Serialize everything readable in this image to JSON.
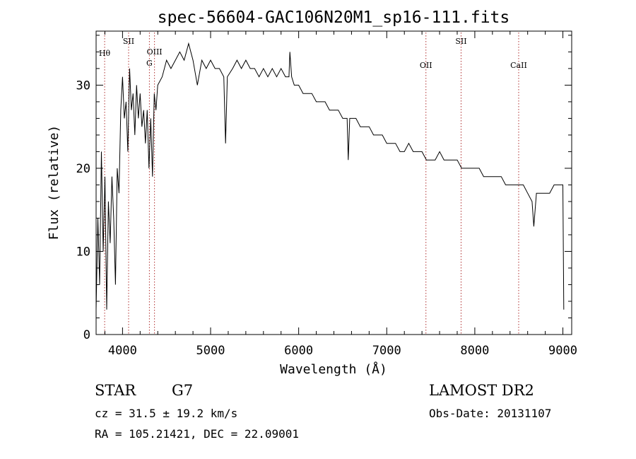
{
  "chart_data": {
    "type": "line",
    "title": "spec-56604-GAC106N20M1_sp16-111.fits",
    "xlabel": "Wavelength (Å)",
    "ylabel": "Flux (relative)",
    "xlim": [
      3700,
      9100
    ],
    "ylim": [
      0,
      36.5
    ],
    "xticks": [
      4000,
      5000,
      6000,
      7000,
      8000,
      9000
    ],
    "yticks": [
      0,
      10,
      20,
      30
    ],
    "x_minor_step": 200,
    "y_minor_step": 2,
    "series": [
      {
        "color": "#000000",
        "points": [
          [
            3700,
            3
          ],
          [
            3720,
            14
          ],
          [
            3740,
            6
          ],
          [
            3760,
            22
          ],
          [
            3780,
            10
          ],
          [
            3800,
            19
          ],
          [
            3820,
            3
          ],
          [
            3840,
            16
          ],
          [
            3860,
            11
          ],
          [
            3880,
            19
          ],
          [
            3900,
            14
          ],
          [
            3920,
            6
          ],
          [
            3940,
            20
          ],
          [
            3960,
            17
          ],
          [
            3980,
            27
          ],
          [
            4000,
            31
          ],
          [
            4020,
            26
          ],
          [
            4040,
            28
          ],
          [
            4060,
            22
          ],
          [
            4080,
            32
          ],
          [
            4100,
            27
          ],
          [
            4120,
            29
          ],
          [
            4140,
            24
          ],
          [
            4160,
            30
          ],
          [
            4180,
            26
          ],
          [
            4200,
            29
          ],
          [
            4220,
            25
          ],
          [
            4240,
            27
          ],
          [
            4260,
            23
          ],
          [
            4280,
            27
          ],
          [
            4300,
            20
          ],
          [
            4320,
            26
          ],
          [
            4340,
            19
          ],
          [
            4360,
            29
          ],
          [
            4380,
            27
          ],
          [
            4400,
            30
          ],
          [
            4450,
            31
          ],
          [
            4500,
            33
          ],
          [
            4550,
            32
          ],
          [
            4600,
            33
          ],
          [
            4650,
            34
          ],
          [
            4700,
            33
          ],
          [
            4750,
            35
          ],
          [
            4800,
            33
          ],
          [
            4850,
            30
          ],
          [
            4900,
            33
          ],
          [
            4950,
            32
          ],
          [
            5000,
            33
          ],
          [
            5050,
            32
          ],
          [
            5100,
            32
          ],
          [
            5150,
            31
          ],
          [
            5170,
            23
          ],
          [
            5190,
            31
          ],
          [
            5250,
            32
          ],
          [
            5300,
            33
          ],
          [
            5350,
            32
          ],
          [
            5400,
            33
          ],
          [
            5450,
            32
          ],
          [
            5500,
            32
          ],
          [
            5550,
            31
          ],
          [
            5600,
            32
          ],
          [
            5650,
            31
          ],
          [
            5700,
            32
          ],
          [
            5750,
            31
          ],
          [
            5800,
            32
          ],
          [
            5850,
            31
          ],
          [
            5890,
            31
          ],
          [
            5900,
            34
          ],
          [
            5920,
            31
          ],
          [
            5950,
            30
          ],
          [
            6000,
            30
          ],
          [
            6050,
            29
          ],
          [
            6100,
            29
          ],
          [
            6150,
            29
          ],
          [
            6200,
            28
          ],
          [
            6250,
            28
          ],
          [
            6300,
            28
          ],
          [
            6350,
            27
          ],
          [
            6400,
            27
          ],
          [
            6450,
            27
          ],
          [
            6500,
            26
          ],
          [
            6550,
            26
          ],
          [
            6563,
            21
          ],
          [
            6580,
            26
          ],
          [
            6650,
            26
          ],
          [
            6700,
            25
          ],
          [
            6750,
            25
          ],
          [
            6800,
            25
          ],
          [
            6850,
            24
          ],
          [
            6900,
            24
          ],
          [
            6950,
            24
          ],
          [
            7000,
            23
          ],
          [
            7050,
            23
          ],
          [
            7100,
            23
          ],
          [
            7150,
            22
          ],
          [
            7200,
            22
          ],
          [
            7250,
            23
          ],
          [
            7300,
            22
          ],
          [
            7350,
            22
          ],
          [
            7400,
            22
          ],
          [
            7450,
            21
          ],
          [
            7500,
            21
          ],
          [
            7550,
            21
          ],
          [
            7600,
            22
          ],
          [
            7650,
            21
          ],
          [
            7700,
            21
          ],
          [
            7750,
            21
          ],
          [
            7800,
            21
          ],
          [
            7850,
            20
          ],
          [
            7900,
            20
          ],
          [
            7950,
            20
          ],
          [
            8000,
            20
          ],
          [
            8050,
            20
          ],
          [
            8100,
            19
          ],
          [
            8150,
            19
          ],
          [
            8200,
            19
          ],
          [
            8250,
            19
          ],
          [
            8300,
            19
          ],
          [
            8350,
            18
          ],
          [
            8400,
            18
          ],
          [
            8450,
            18
          ],
          [
            8500,
            18
          ],
          [
            8550,
            18
          ],
          [
            8600,
            17
          ],
          [
            8650,
            16
          ],
          [
            8670,
            13
          ],
          [
            8700,
            17
          ],
          [
            8750,
            17
          ],
          [
            8800,
            17
          ],
          [
            8850,
            17
          ],
          [
            8900,
            18
          ],
          [
            8950,
            18
          ],
          [
            9000,
            18
          ],
          [
            9010,
            3
          ]
        ]
      }
    ],
    "lines": [
      {
        "label": "Hθ",
        "x": 3797
      },
      {
        "label": "SII",
        "x": 4069
      },
      {
        "label": "OIII",
        "x": 4363
      },
      {
        "label": "G",
        "x": 4305
      },
      {
        "label": "OII",
        "x": 7445
      },
      {
        "label": "SII",
        "x": 7844
      },
      {
        "label": "CaII",
        "x": 8498
      }
    ]
  },
  "info": {
    "class": "STAR",
    "subclass": "G7",
    "survey": "LAMOST DR2",
    "cz": "cz = 31.5 ± 19.2 km/s",
    "obs_date": "Obs-Date: 20131107",
    "coords": "RA = 105.21421, DEC =  22.09001"
  }
}
